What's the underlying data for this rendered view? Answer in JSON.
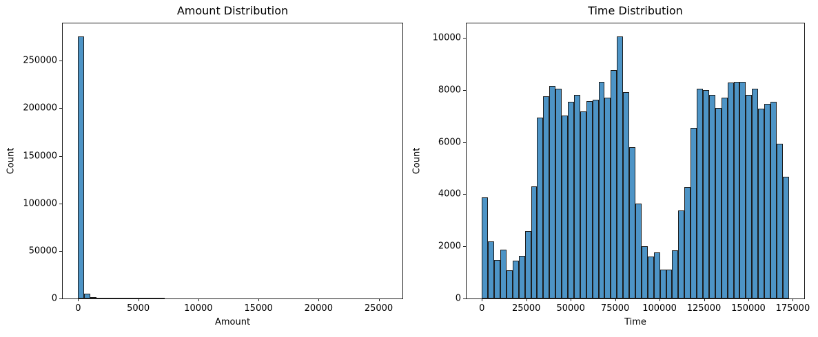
{
  "figure": {
    "background": "#ffffff",
    "text_color": "#000000",
    "spine_color": "#1a1a1a"
  },
  "chart_data": [
    {
      "type": "bar",
      "subtype": "histogram",
      "title": "Amount Distribution",
      "xlabel": "Amount",
      "ylabel": "Count",
      "bar_color": "#4D94C6",
      "bar_edge_color": "#1c1c1c",
      "legend": "none",
      "grid": false,
      "xlim": [
        -1285,
        26976
      ],
      "ylim": [
        0,
        289275
      ],
      "xticks": [
        0,
        5000,
        10000,
        15000,
        20000,
        25000
      ],
      "yticks": [
        0,
        50000,
        100000,
        150000,
        200000,
        250000
      ],
      "bin_start": 0,
      "bin_width": 513.8,
      "values": [
        275500,
        5200,
        1600,
        600,
        400,
        280,
        220,
        170,
        140,
        110,
        90,
        75,
        60,
        50,
        0,
        0,
        0,
        0,
        0,
        0,
        0,
        0,
        0,
        0,
        0,
        0,
        0,
        0,
        0,
        0,
        0,
        0,
        0,
        0,
        0,
        0,
        0,
        0,
        0,
        0,
        0,
        0,
        0,
        0,
        0,
        0,
        0,
        0,
        0,
        0
      ]
    },
    {
      "type": "bar",
      "subtype": "histogram",
      "title": "Time Distribution",
      "xlabel": "Time",
      "ylabel": "Count",
      "bar_color": "#4D94C6",
      "bar_edge_color": "#1c1c1c",
      "legend": "none",
      "grid": false,
      "xlim": [
        -8640,
        181432
      ],
      "ylim": [
        0,
        10556
      ],
      "xticks": [
        0,
        25000,
        50000,
        75000,
        100000,
        125000,
        150000,
        175000
      ],
      "yticks": [
        0,
        2000,
        4000,
        6000,
        8000,
        10000
      ],
      "bin_start": 0,
      "bin_width": 3455.8,
      "values": [
        3880,
        2180,
        1490,
        1870,
        1080,
        1460,
        1630,
        2590,
        4300,
        6930,
        7770,
        8150,
        8040,
        7020,
        7560,
        7820,
        7190,
        7580,
        7630,
        8320,
        7700,
        8750,
        10050,
        7930,
        5800,
        3640,
        2000,
        1600,
        1780,
        1100,
        1110,
        1840,
        3380,
        4280,
        6550,
        8060,
        8000,
        7800,
        7320,
        7710,
        8280,
        8300,
        8320,
        7810,
        8040,
        7280,
        7480,
        7540,
        5950,
        4670
      ]
    }
  ]
}
